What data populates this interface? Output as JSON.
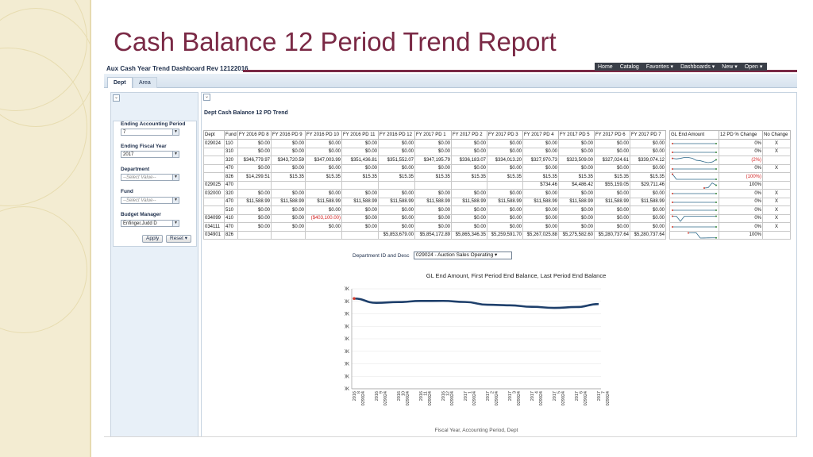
{
  "slide": {
    "title": "Cash Balance 12 Period Trend Report"
  },
  "dashboard": {
    "title": "Aux Cash Year Trend Dashboard Rev 12122016",
    "nav": [
      "Home",
      "Catalog",
      "Favorites ▾",
      "Dashboards ▾",
      "New ▾",
      "Open ▾"
    ],
    "tabs": [
      "Dept",
      "Area"
    ],
    "toggle_glyph": "⌄"
  },
  "prompts": {
    "fields": [
      {
        "label": "Ending Accounting Period",
        "value": "7",
        "placeholder": false
      },
      {
        "label": "Ending Fiscal Year",
        "value": "2017",
        "placeholder": false
      },
      {
        "label": "Department",
        "value": "--Select Value--",
        "placeholder": true
      },
      {
        "label": "Fund",
        "value": "--Select Value--",
        "placeholder": true
      },
      {
        "label": "Budget Manager",
        "value": "Enfinger,Judd D",
        "placeholder": false
      }
    ],
    "apply_label": "Apply",
    "reset_label": "Reset ▾"
  },
  "report": {
    "title": "Dept Cash Balance 12 PD Trend",
    "columns": [
      "Dept",
      "Fund",
      "FY 2016 PD 8",
      "FY 2016 PD 9",
      "FY 2016 PD 10",
      "FY 2016 PD 11",
      "FY 2016 PD 12",
      "FY 2017 PD 1",
      "FY 2017 PD 2",
      "FY 2017 PD 3",
      "FY 2017 PD 4",
      "FY 2017 PD 5",
      "FY 2017 PD 6",
      "FY 2017 PD 7"
    ],
    "side_columns": [
      "GL End Amount",
      "12 PD % Change",
      "No Change"
    ],
    "rows": [
      {
        "dept": "029024",
        "fund": "110",
        "values": [
          "$0.00",
          "$0.00",
          "$0.00",
          "$0.00",
          "$0.00",
          "$0.00",
          "$0.00",
          "$0.00",
          "$0.00",
          "$0.00",
          "$0.00",
          "$0.00"
        ],
        "pct": "0%",
        "nochange": "X"
      },
      {
        "dept": "",
        "fund": "310",
        "values": [
          "$0.00",
          "$0.00",
          "$0.00",
          "$0.00",
          "$0.00",
          "$0.00",
          "$0.00",
          "$0.00",
          "$0.00",
          "$0.00",
          "$0.00",
          "$0.00"
        ],
        "pct": "0%",
        "nochange": "X"
      },
      {
        "dept": "",
        "fund": "320",
        "values": [
          "$346,779.97",
          "$343,720.59",
          "$347,003.99",
          "$351,436.81",
          "$351,552.07",
          "$347,195.79",
          "$336,183.07",
          "$334,013.20",
          "$327,970.73",
          "$323,509.00",
          "$327,024.61",
          "$339,074.12"
        ],
        "pct": "(2%)",
        "nochange": ""
      },
      {
        "dept": "",
        "fund": "470",
        "values": [
          "$0.00",
          "$0.00",
          "$0.00",
          "$0.00",
          "$0.00",
          "$0.00",
          "$0.00",
          "$0.00",
          "$0.00",
          "$0.00",
          "$0.00",
          "$0.00"
        ],
        "pct": "0%",
        "nochange": "X"
      },
      {
        "dept": "",
        "fund": "826",
        "values": [
          "$14,299.51",
          "$15.35",
          "$15.35",
          "$15.35",
          "$15.35",
          "$15.35",
          "$15.35",
          "$15.35",
          "$15.35",
          "$15.35",
          "$15.35",
          "$15.35"
        ],
        "pct": "(100%)",
        "nochange": ""
      },
      {
        "dept": "029025",
        "fund": "470",
        "values": [
          "",
          "",
          "",
          "",
          "",
          "",
          "",
          "",
          "$734.46",
          "$4,486.42",
          "$55,159.05",
          "$29,711.46"
        ],
        "pct": "100%",
        "nochange": ""
      },
      {
        "dept": "032000",
        "fund": "320",
        "values": [
          "$0.00",
          "$0.00",
          "$0.00",
          "$0.00",
          "$0.00",
          "$0.00",
          "$0.00",
          "$0.00",
          "$0.00",
          "$0.00",
          "$0.00",
          "$0.00"
        ],
        "pct": "0%",
        "nochange": "X"
      },
      {
        "dept": "",
        "fund": "470",
        "values": [
          "$11,588.99",
          "$11,588.99",
          "$11,588.99",
          "$11,588.99",
          "$11,588.99",
          "$11,588.99",
          "$11,588.99",
          "$11,588.99",
          "$11,588.99",
          "$11,588.99",
          "$11,588.99",
          "$11,588.99"
        ],
        "pct": "0%",
        "nochange": "X"
      },
      {
        "dept": "",
        "fund": "510",
        "values": [
          "$0.00",
          "$0.00",
          "$0.00",
          "$0.00",
          "$0.00",
          "$0.00",
          "$0.00",
          "$0.00",
          "$0.00",
          "$0.00",
          "$0.00",
          "$0.00"
        ],
        "pct": "0%",
        "nochange": "X"
      },
      {
        "dept": "034099",
        "fund": "410",
        "values": [
          "$0.00",
          "$0.00",
          "($403,100.00)",
          "$0.00",
          "$0.00",
          "$0.00",
          "$0.00",
          "$0.00",
          "$0.00",
          "$0.00",
          "$0.00",
          "$0.00"
        ],
        "pct": "0%",
        "nochange": "X"
      },
      {
        "dept": "034111",
        "fund": "470",
        "values": [
          "$0.00",
          "$0.00",
          "$0.00",
          "$0.00",
          "$0.00",
          "$0.00",
          "$0.00",
          "$0.00",
          "$0.00",
          "$0.00",
          "$0.00",
          "$0.00"
        ],
        "pct": "0%",
        "nochange": "X"
      },
      {
        "dept": "034901",
        "fund": "826",
        "values": [
          "",
          "",
          "",
          "",
          "$5,853,679.00",
          "$5,854,172.89",
          "$5,865,346.35",
          "$5,259,591.70",
          "$5,267,025.88",
          "$5,275,582.60",
          "$5,280,737.64",
          "$5,280,737.64"
        ],
        "pct": "100%",
        "nochange": ""
      }
    ]
  },
  "dept_selector": {
    "label": "Department ID and Desc",
    "value": "029024 - Auction Sales Operating ▾"
  },
  "chart_data": {
    "type": "line",
    "title": "GL End Amount, First Period End Balance, Last Period End Balance",
    "ylabel": "GL End Amount, First Period E...",
    "xlabel": "Fiscal Year, Accounting Period, Dept",
    "ylim": [
      0,
      400000
    ],
    "yticks": [
      "$0.00K",
      "$50.00K",
      "$100.00K",
      "$150.00K",
      "$200.00K",
      "$250.00K",
      "$300.00K",
      "$350.00K",
      "$400.00K"
    ],
    "categories": [
      "2016 8 029024",
      "2016 9 029024",
      "2016 10 029024",
      "2016 11 029024",
      "2016 12 029024",
      "2017 1 029024",
      "2017 2 029024",
      "2017 3 029024",
      "2017 4 029024",
      "2017 5 029024",
      "2017 6 029024",
      "2017 7 029024"
    ],
    "values": [
      361079.48,
      343735.94,
      347019.34,
      351452.16,
      351567.42,
      347211.14,
      336198.42,
      334028.55,
      327986.08,
      323524.35,
      327039.96,
      339089.47
    ],
    "colors": {
      "line": "#1e3f6b",
      "first_point": "#d33a2c",
      "last_point": "#3a8a3a"
    }
  }
}
